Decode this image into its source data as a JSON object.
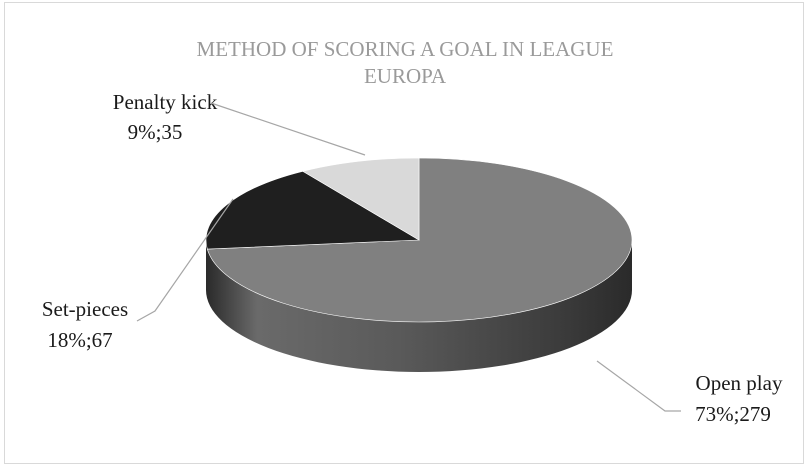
{
  "chart_data": {
    "type": "pie",
    "style": "3d",
    "title_lines": [
      "METHOD OF SCORING A GOAL IN LEAGUE",
      "EUROPA"
    ],
    "slices": [
      {
        "name": "Open play",
        "percent_label": "73%;279",
        "percent": 73,
        "value": 279,
        "color": "#808080"
      },
      {
        "name": "Set-pieces",
        "percent_label": "18%;67",
        "percent": 18,
        "value": 67,
        "color": "#1f1f1f"
      },
      {
        "name": "Penalty kick",
        "percent_label": "9%;35",
        "percent": 9,
        "value": 35,
        "color": "#d9d9d9"
      }
    ],
    "legend": "none",
    "data_labels": "outside with leader lines"
  }
}
